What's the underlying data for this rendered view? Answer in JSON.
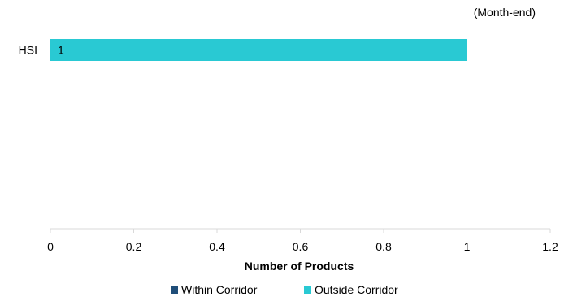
{
  "chart_data": {
    "type": "bar",
    "orientation": "horizontal",
    "stacked": true,
    "note": "(Month-end)",
    "categories": [
      "HSI"
    ],
    "series": [
      {
        "name": "Within Corridor",
        "values": [
          0
        ],
        "color": "#1F4E79"
      },
      {
        "name": "Outside Corridor",
        "values": [
          1
        ],
        "color": "#29C9D3"
      }
    ],
    "data_labels": [
      "1"
    ],
    "xlabel": "Number of Products",
    "xlim": [
      0,
      1.2
    ],
    "xticks": [
      "0",
      "0.2",
      "0.4",
      "0.6",
      "0.8",
      "1",
      "1.2"
    ],
    "grid": false,
    "legend_position": "bottom"
  }
}
